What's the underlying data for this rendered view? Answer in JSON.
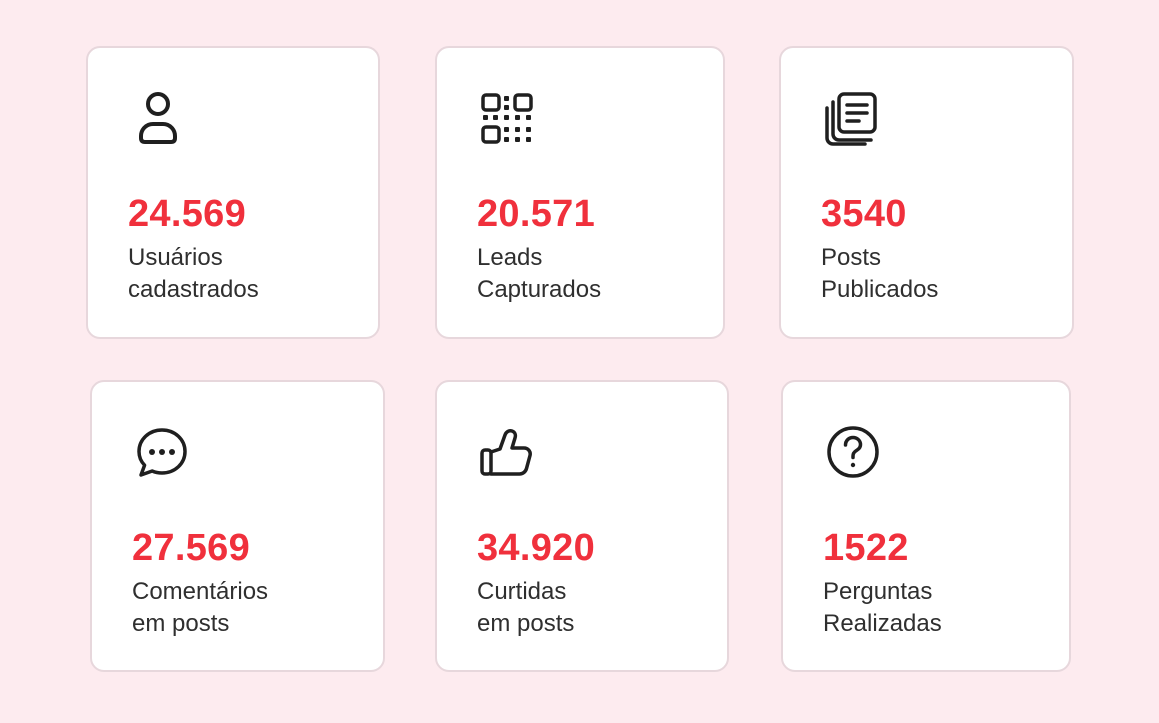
{
  "theme": {
    "background": "#fdebef",
    "card_background": "#ffffff",
    "card_border": "#e7d7dc",
    "accent": "#f0303c",
    "text": "#2f2f2f",
    "icon": "#1f1f1f"
  },
  "stats": [
    {
      "icon": "user-icon",
      "value": "24.569",
      "label_line1": "Usuários",
      "label_line2": "cadastrados"
    },
    {
      "icon": "qr-code-icon",
      "value": "20.571",
      "label_line1": "Leads",
      "label_line2": "Capturados"
    },
    {
      "icon": "documents-icon",
      "value": "3540",
      "label_line1": "Posts",
      "label_line2": "Publicados"
    },
    {
      "icon": "chat-bubble-icon",
      "value": "27.569",
      "label_line1": "Comentários",
      "label_line2": "em posts"
    },
    {
      "icon": "thumbs-up-icon",
      "value": "34.920",
      "label_line1": "Curtidas",
      "label_line2": "em posts"
    },
    {
      "icon": "question-icon",
      "value": "1522",
      "label_line1": "Perguntas",
      "label_line2": "Realizadas"
    }
  ]
}
